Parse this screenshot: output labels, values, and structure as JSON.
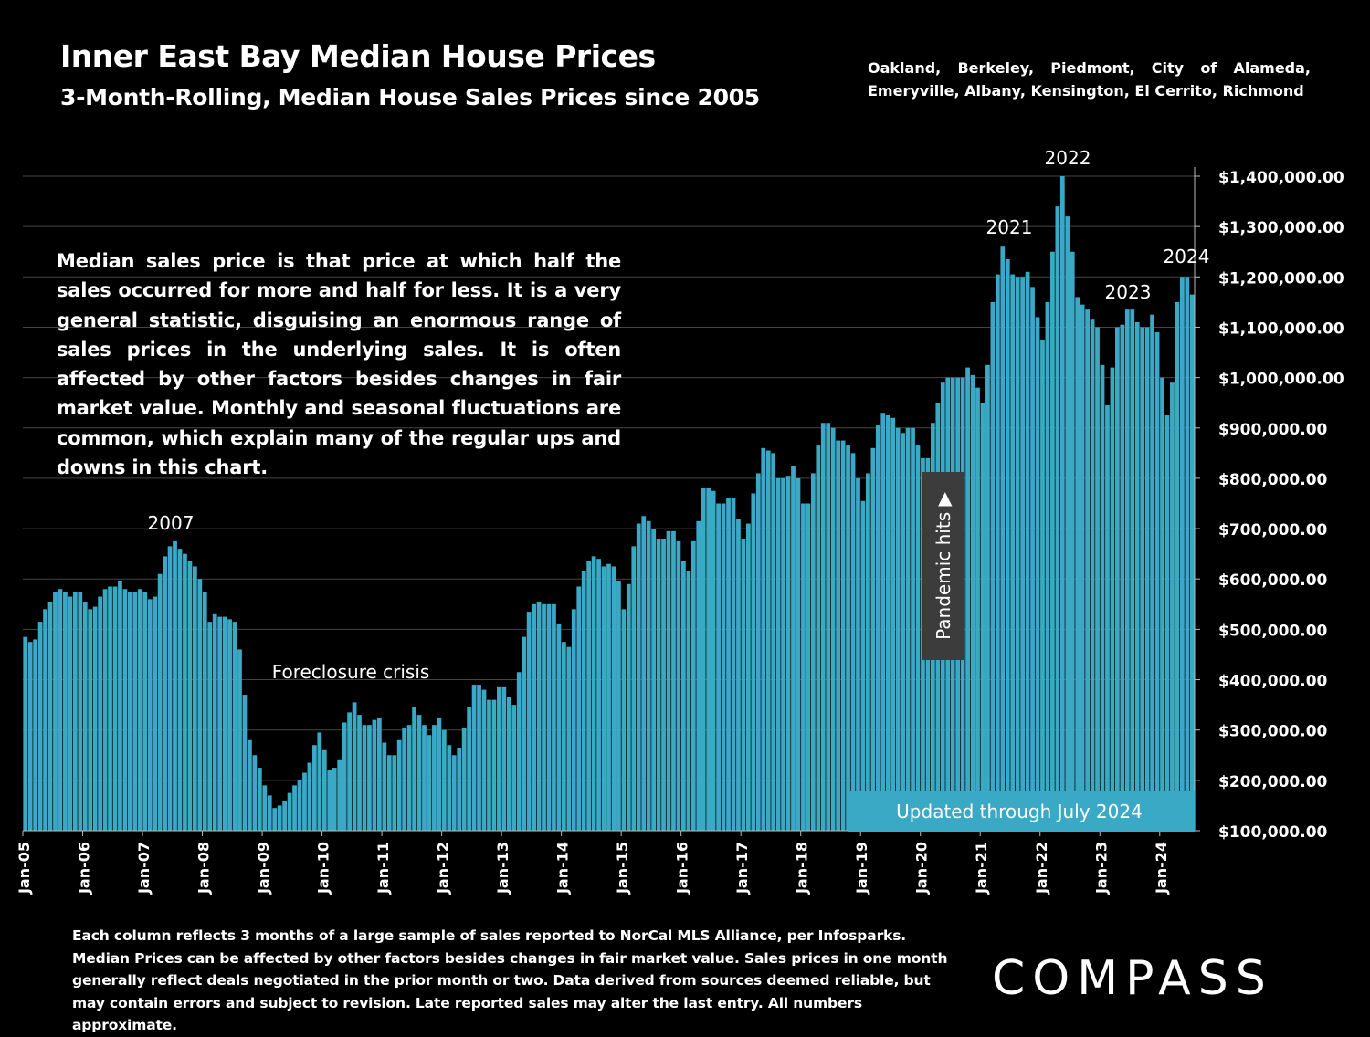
{
  "header": {
    "title": "Inner East Bay Median House Prices",
    "subtitle": "3-Month-Rolling, Median House Sales Prices since 2005",
    "cities": "Oakland, Berkeley, Piedmont, City of Alameda, Emeryville, Albany, Kensington, El Cerrito, Richmond"
  },
  "explanation": "Median sales price is that price at which half the sales occurred for more and half for less. It is a very general statistic, disguising an enormous range of sales prices in the underlying sales. It is often affected by other factors besides changes in fair market value. Monthly and seasonal fluctuations are common, which explain many of the regular ups and downs in this chart.",
  "footnote": "Each column reflects 3 months of a large sample of sales reported to NorCal MLS Alliance, per Infosparks. Median Prices can be affected by other factors besides changes in fair market value. Sales prices in one month generally reflect deals negotiated in the prior month or two. Data derived from sources deemed reliable, but may contain errors and subject to revision. Late reported sales may alter the last entry. All numbers approximate.",
  "logo": "COMPASS",
  "colors": {
    "bar": "#3aa9c6",
    "background": "#000000",
    "grid": "#444444",
    "badge": "#3aa9c6",
    "pandemic_box": "#3c3c3c"
  },
  "chart_data": {
    "type": "bar",
    "title": "Inner East Bay Median House Prices",
    "ylim": [
      100000,
      1400000
    ],
    "y_ticks": [
      100000,
      200000,
      300000,
      400000,
      500000,
      600000,
      700000,
      800000,
      900000,
      1000000,
      1100000,
      1200000,
      1300000,
      1400000
    ],
    "y_tick_labels": [
      "$100,000.00",
      "$200,000.00",
      "$300,000.00",
      "$400,000.00",
      "$500,000.00",
      "$600,000.00",
      "$700,000.00",
      "$800,000.00",
      "$900,000.00",
      "$1,000,000.00",
      "$1,100,000.00",
      "$1,200,000.00",
      "$1,300,000.00",
      "$1,400,000.00"
    ],
    "y_axis_side": "right",
    "grid": true,
    "x_tick_labels": [
      "Jan-05",
      "Jan-06",
      "Jan-07",
      "Jan-08",
      "Jan-09",
      "Jan-10",
      "Jan-11",
      "Jan-12",
      "Jan-13",
      "Jan-14",
      "Jan-15",
      "Jan-16",
      "Jan-17",
      "Jan-18",
      "Jan-19",
      "Jan-20",
      "Jan-21",
      "Jan-22",
      "Jan-23",
      "Jan-24"
    ],
    "x_start": "Jan-05",
    "x_end": "Jul-24",
    "values": [
      485000,
      475000,
      480000,
      515000,
      540000,
      555000,
      575000,
      580000,
      575000,
      565000,
      575000,
      575000,
      555000,
      540000,
      545000,
      565000,
      580000,
      585000,
      585000,
      595000,
      580000,
      575000,
      575000,
      580000,
      575000,
      560000,
      565000,
      610000,
      645000,
      665000,
      675000,
      660000,
      650000,
      635000,
      625000,
      600000,
      575000,
      515000,
      530000,
      525000,
      525000,
      520000,
      515000,
      460000,
      370000,
      280000,
      250000,
      225000,
      190000,
      170000,
      145000,
      150000,
      160000,
      175000,
      190000,
      200000,
      215000,
      235000,
      270000,
      295000,
      260000,
      220000,
      225000,
      240000,
      315000,
      335000,
      355000,
      330000,
      310000,
      310000,
      320000,
      325000,
      275000,
      250000,
      250000,
      280000,
      305000,
      310000,
      345000,
      330000,
      310000,
      290000,
      310000,
      325000,
      300000,
      270000,
      250000,
      265000,
      305000,
      345000,
      390000,
      390000,
      380000,
      360000,
      360000,
      385000,
      385000,
      365000,
      350000,
      415000,
      485000,
      535000,
      550000,
      555000,
      550000,
      550000,
      550000,
      510000,
      475000,
      465000,
      540000,
      585000,
      615000,
      635000,
      645000,
      640000,
      625000,
      630000,
      625000,
      595000,
      540000,
      590000,
      665000,
      710000,
      725000,
      715000,
      700000,
      680000,
      680000,
      695000,
      695000,
      675000,
      635000,
      615000,
      675000,
      715000,
      780000,
      780000,
      775000,
      750000,
      750000,
      760000,
      760000,
      720000,
      680000,
      710000,
      770000,
      810000,
      860000,
      855000,
      850000,
      800000,
      800000,
      805000,
      825000,
      800000,
      750000,
      750000,
      810000,
      865000,
      910000,
      910000,
      900000,
      875000,
      875000,
      865000,
      850000,
      800000,
      755000,
      810000,
      860000,
      905000,
      930000,
      925000,
      920000,
      900000,
      890000,
      900000,
      900000,
      865000,
      840000,
      840000,
      910000,
      950000,
      990000,
      1000000,
      1000000,
      1000000,
      1000000,
      1020000,
      1005000,
      980000,
      950000,
      1025000,
      1150000,
      1205000,
      1260000,
      1235000,
      1205000,
      1200000,
      1200000,
      1210000,
      1180000,
      1120000,
      1075000,
      1150000,
      1250000,
      1340000,
      1400000,
      1320000,
      1250000,
      1160000,
      1145000,
      1135000,
      1115000,
      1100000,
      1025000,
      945000,
      1020000,
      1100000,
      1105000,
      1135000,
      1135000,
      1110000,
      1100000,
      1100000,
      1125000,
      1090000,
      1000000,
      925000,
      990000,
      1150000,
      1200000,
      1200000,
      1165000
    ]
  },
  "annotations": {
    "y2007": "2007",
    "foreclosure": "Foreclosure crisis",
    "y2021": "2021",
    "y2022": "2022",
    "y2023": "2023",
    "y2024": "2024",
    "pandemic": "Pandemic hits ▶",
    "updated": "Updated through July 2024"
  }
}
